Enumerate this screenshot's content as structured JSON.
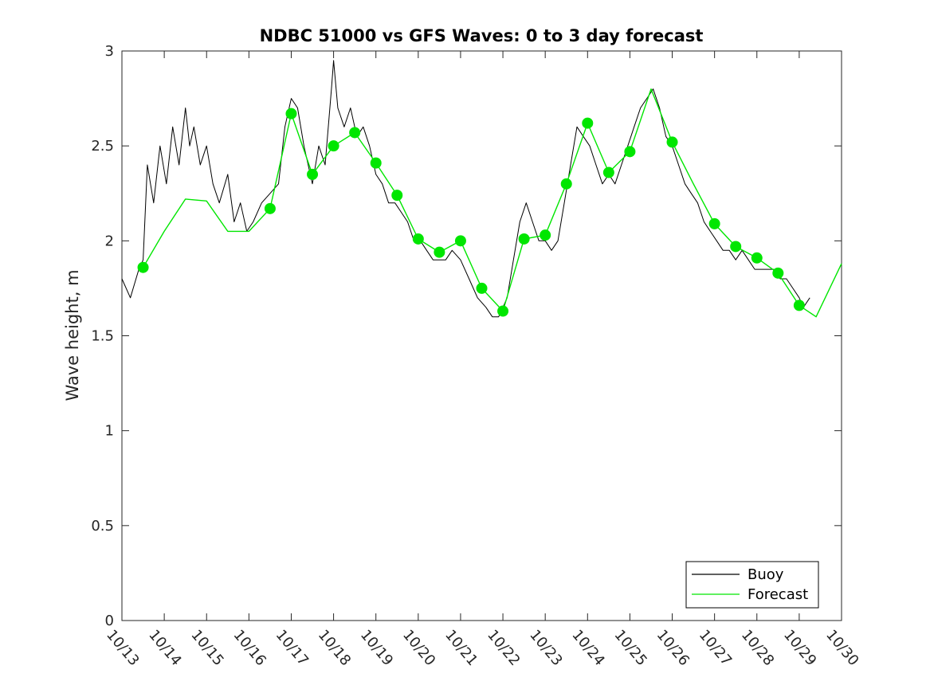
{
  "chart_data": {
    "type": "line",
    "title": "NDBC 51000 vs GFS Waves: 0 to 3 day forecast",
    "xlabel": "",
    "ylabel": "Wave height, m",
    "x_tick_labels": [
      "10/13",
      "10/14",
      "10/15",
      "10/16",
      "10/17",
      "10/18",
      "10/19",
      "10/20",
      "10/21",
      "10/22",
      "10/23",
      "10/24",
      "10/25",
      "10/26",
      "10/27",
      "10/28",
      "10/29",
      "10/30"
    ],
    "y_tick_labels": [
      "0",
      "0.5",
      "1",
      "1.5",
      "2",
      "2.5",
      "3"
    ],
    "xlim": [
      13,
      30
    ],
    "ylim": [
      0,
      3
    ],
    "grid": false,
    "legend_position": "bottom-right",
    "colors": {
      "buoy": "#000000",
      "forecast": "#00e600"
    },
    "series": [
      {
        "name": "Buoy",
        "x": [
          13.0,
          13.2,
          13.4,
          13.5,
          13.6,
          13.75,
          13.9,
          14.05,
          14.2,
          14.35,
          14.5,
          14.6,
          14.7,
          14.85,
          15.0,
          15.15,
          15.3,
          15.5,
          15.65,
          15.8,
          15.95,
          16.1,
          16.3,
          16.5,
          16.7,
          16.85,
          17.0,
          17.15,
          17.3,
          17.5,
          17.65,
          17.8,
          17.95,
          18.0,
          18.1,
          18.25,
          18.4,
          18.55,
          18.7,
          18.85,
          19.0,
          19.15,
          19.3,
          19.45,
          19.6,
          19.75,
          19.9,
          20.05,
          20.2,
          20.35,
          20.5,
          20.65,
          20.8,
          21.0,
          21.2,
          21.4,
          21.6,
          21.75,
          21.9,
          22.0,
          22.1,
          22.25,
          22.4,
          22.55,
          22.7,
          22.85,
          23.0,
          23.15,
          23.3,
          23.45,
          23.6,
          23.75,
          23.9,
          24.05,
          24.2,
          24.35,
          24.5,
          24.65,
          24.8,
          24.95,
          25.1,
          25.25,
          25.4,
          25.55,
          25.7,
          25.85,
          26.0,
          26.15,
          26.3,
          26.45,
          26.6,
          26.75,
          26.9,
          27.05,
          27.2,
          27.35,
          27.5,
          27.65,
          27.8,
          27.95,
          28.1,
          28.25,
          28.4,
          28.55,
          28.7,
          28.85,
          29.0,
          29.1,
          29.25
        ],
        "y": [
          1.8,
          1.7,
          1.85,
          1.9,
          2.4,
          2.2,
          2.5,
          2.3,
          2.6,
          2.4,
          2.7,
          2.5,
          2.6,
          2.4,
          2.5,
          2.3,
          2.2,
          2.35,
          2.1,
          2.2,
          2.05,
          2.1,
          2.2,
          2.25,
          2.3,
          2.6,
          2.75,
          2.7,
          2.5,
          2.3,
          2.5,
          2.4,
          2.8,
          2.95,
          2.7,
          2.6,
          2.7,
          2.55,
          2.6,
          2.5,
          2.35,
          2.3,
          2.2,
          2.2,
          2.15,
          2.1,
          2.0,
          2.0,
          1.95,
          1.9,
          1.9,
          1.9,
          1.95,
          1.9,
          1.8,
          1.7,
          1.65,
          1.6,
          1.6,
          1.65,
          1.7,
          1.9,
          2.1,
          2.2,
          2.1,
          2.0,
          2.0,
          1.95,
          2.0,
          2.2,
          2.4,
          2.6,
          2.55,
          2.5,
          2.4,
          2.3,
          2.35,
          2.3,
          2.4,
          2.5,
          2.6,
          2.7,
          2.75,
          2.8,
          2.7,
          2.55,
          2.5,
          2.4,
          2.3,
          2.25,
          2.2,
          2.1,
          2.05,
          2.0,
          1.95,
          1.95,
          1.9,
          1.95,
          1.9,
          1.85,
          1.85,
          1.85,
          1.85,
          1.8,
          1.8,
          1.75,
          1.7,
          1.65,
          1.7
        ]
      },
      {
        "name": "Forecast",
        "x": [
          13.5,
          14.0,
          14.5,
          15.0,
          15.5,
          16.0,
          16.5,
          17.0,
          17.5,
          18.0,
          18.5,
          19.0,
          19.5,
          20.0,
          20.5,
          21.0,
          21.5,
          22.0,
          22.5,
          23.0,
          23.5,
          24.0,
          24.5,
          25.0,
          25.5,
          26.0,
          26.5,
          27.0,
          27.5,
          28.0,
          28.5,
          29.0,
          29.4,
          30.0
        ],
        "y": [
          1.86,
          2.05,
          2.22,
          2.21,
          2.05,
          2.05,
          2.17,
          2.67,
          2.35,
          2.5,
          2.57,
          2.41,
          2.24,
          2.01,
          1.94,
          2.0,
          1.75,
          1.63,
          2.01,
          2.03,
          2.3,
          2.62,
          2.36,
          2.47,
          2.8,
          2.52,
          2.3,
          2.09,
          1.97,
          1.91,
          1.83,
          1.66,
          1.6,
          1.88
        ]
      }
    ],
    "forecast_markers": {
      "x": [
        13.5,
        16.5,
        17.0,
        17.5,
        18.0,
        18.5,
        19.0,
        19.5,
        20.0,
        20.5,
        21.0,
        21.5,
        22.0,
        22.5,
        23.0,
        23.5,
        24.0,
        24.5,
        25.0,
        26.0,
        27.0,
        27.5,
        28.0,
        28.5,
        29.0
      ],
      "y": [
        1.86,
        2.17,
        2.67,
        2.35,
        2.5,
        2.57,
        2.41,
        2.24,
        2.01,
        1.94,
        2.0,
        1.75,
        1.63,
        2.01,
        2.03,
        2.3,
        2.62,
        2.36,
        2.47,
        2.52,
        2.09,
        1.97,
        1.91,
        1.83,
        1.66
      ]
    }
  }
}
